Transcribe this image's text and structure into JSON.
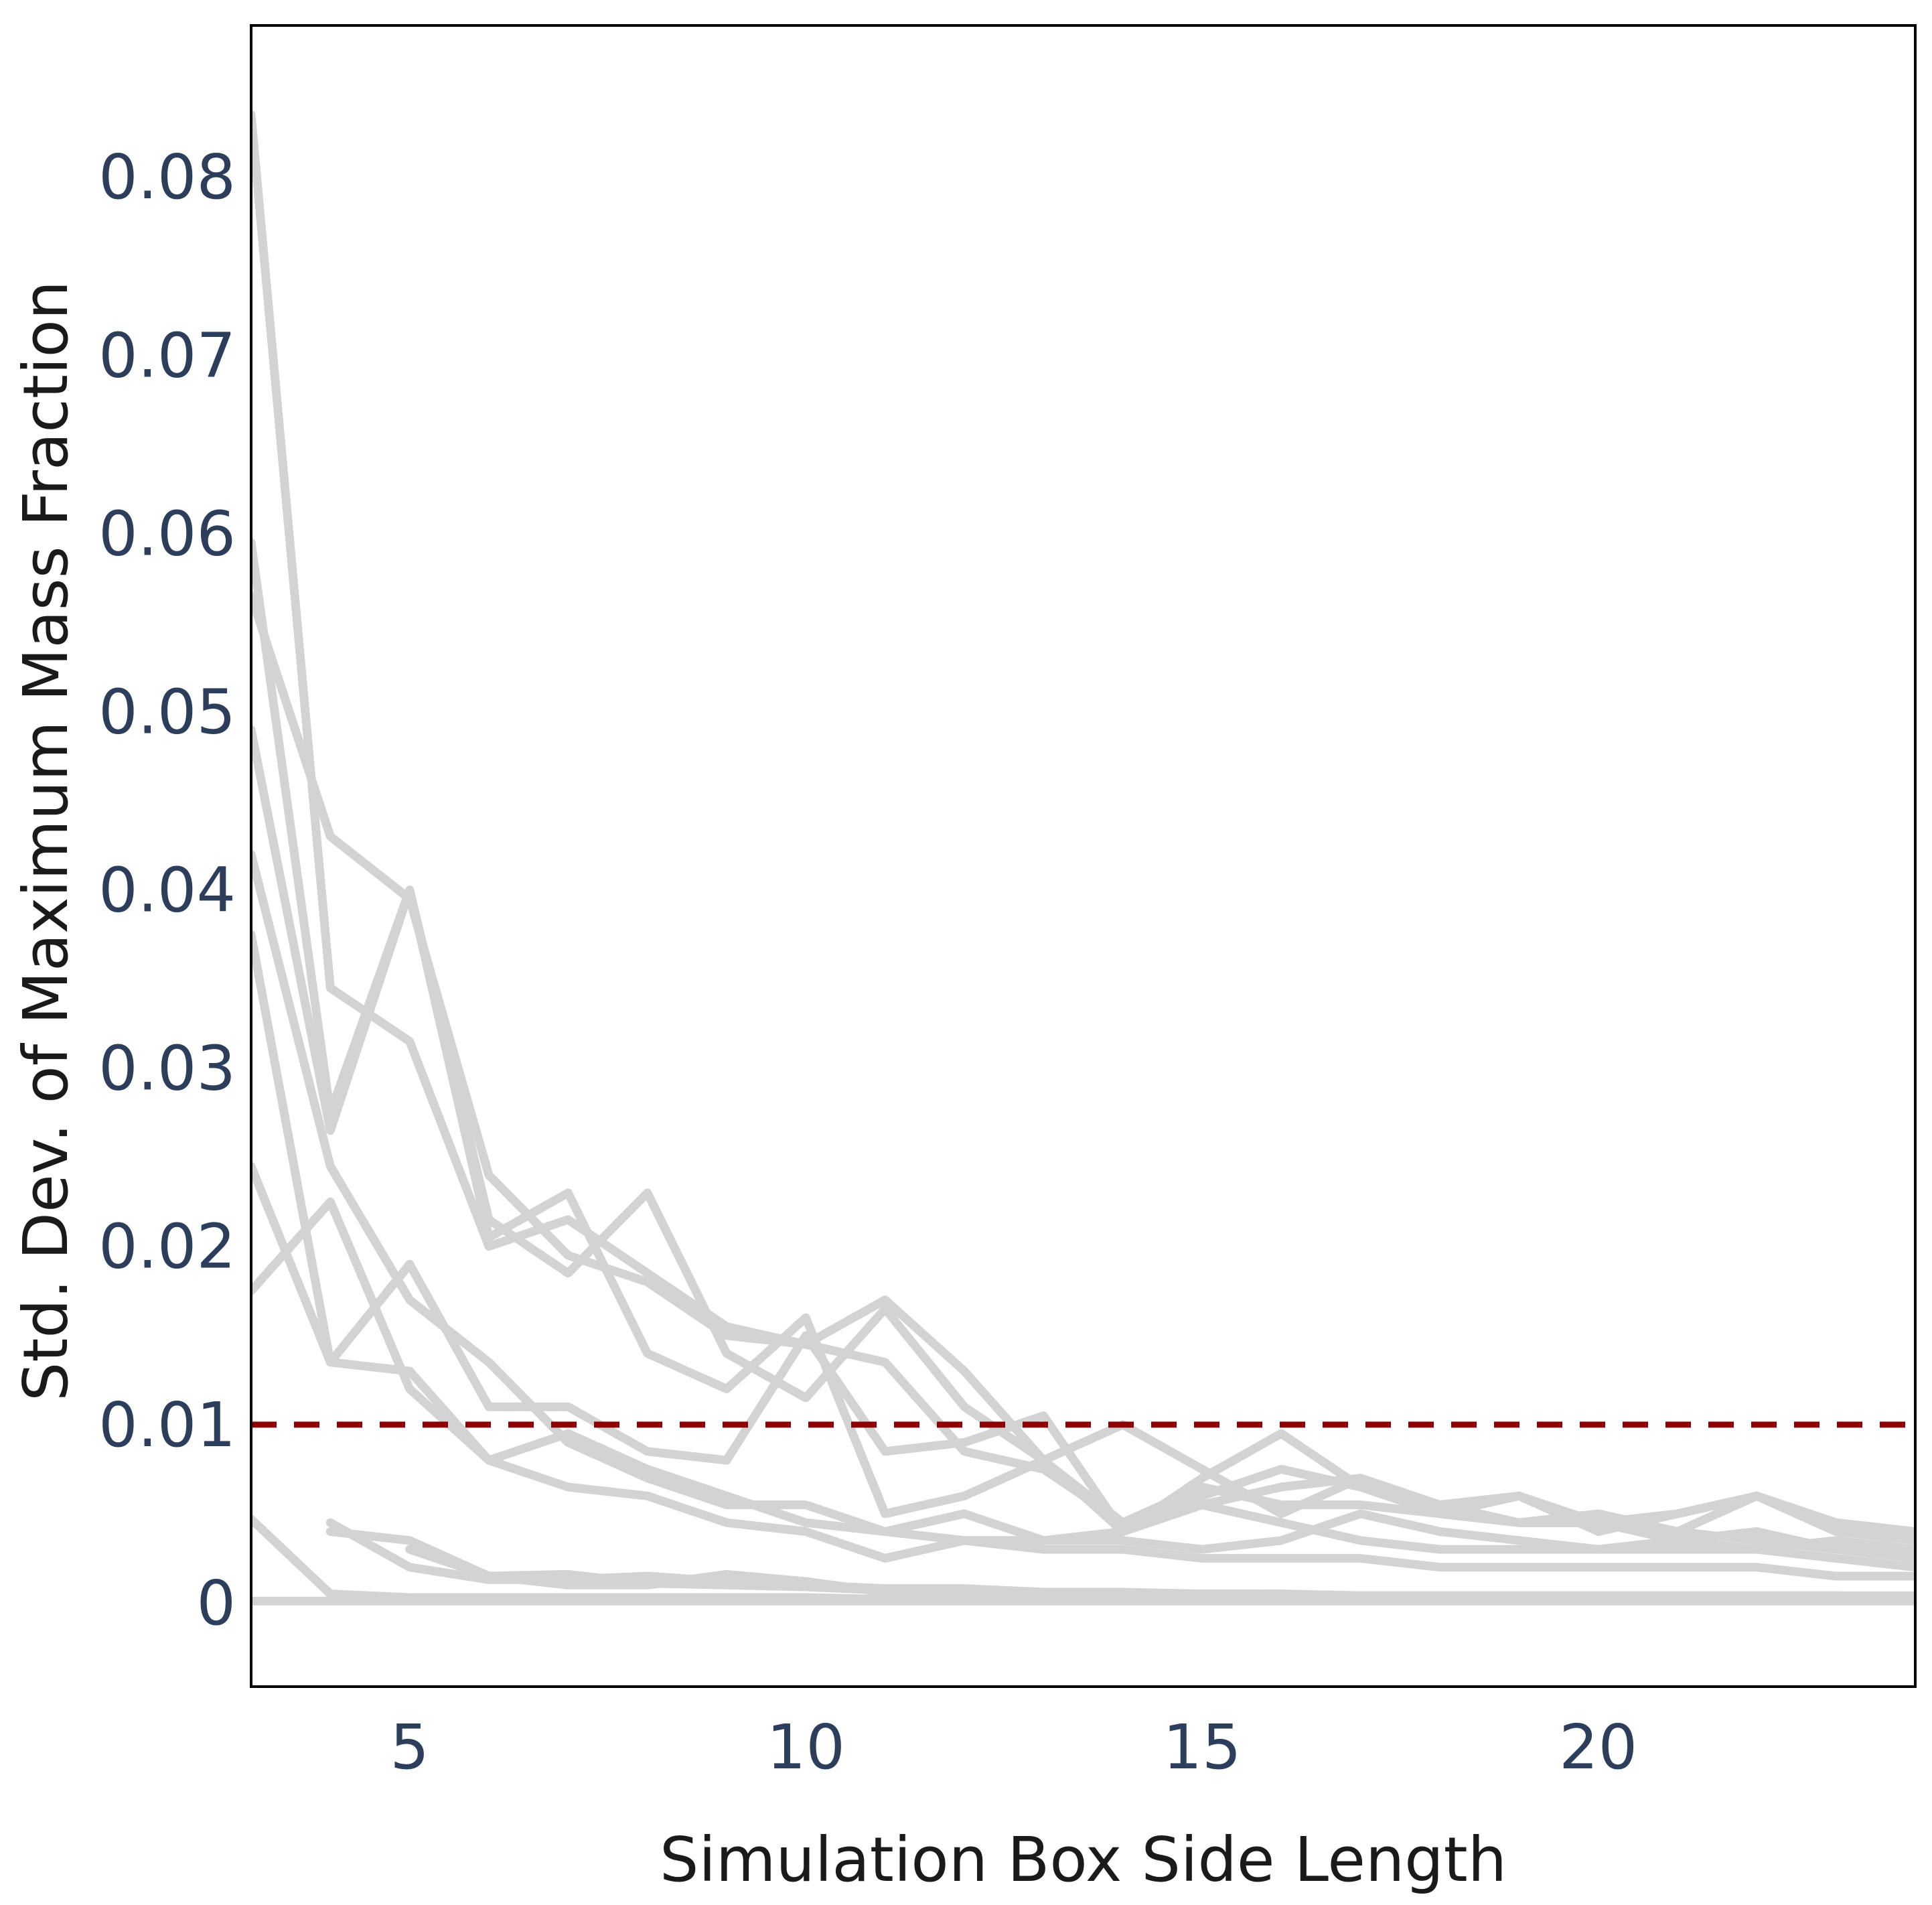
{
  "chart_data": {
    "type": "line",
    "title": "",
    "xlabel": "Simulation Box Side Length",
    "ylabel": "Std. Dev. of Maximum Mass Fraction",
    "xlim": [
      3,
      24
    ],
    "ylim": [
      -0.0047,
      0.0885
    ],
    "x_ticks": [
      5,
      10,
      15,
      20
    ],
    "y_ticks": [
      0,
      0.01,
      0.02,
      0.03,
      0.04,
      0.05,
      0.06,
      0.07,
      0.08
    ],
    "y_tick_labels": [
      "0",
      "0.01",
      "0.02",
      "0.03",
      "0.04",
      "0.05",
      "0.06",
      "0.07",
      "0.08"
    ],
    "grid": false,
    "legend": "none",
    "series_color": "#d3d3d3",
    "reference_line": {
      "y": 0.01,
      "style": "dashed",
      "color": "#8b0000"
    },
    "series": [
      {
        "x": [
          3,
          4,
          5,
          6,
          7,
          8,
          9,
          10,
          11,
          12,
          13,
          14,
          15,
          16,
          17,
          18,
          19,
          20,
          21,
          22,
          23,
          24
        ],
        "y": [
          0.0835,
          0.0345,
          0.0315,
          0.02,
          0.0215,
          0.0185,
          0.0155,
          0.0145,
          0.0135,
          0.0085,
          0.0075,
          0.0045,
          0.0065,
          0.0055,
          0.0055,
          0.005,
          0.0045,
          0.0045,
          0.004,
          0.0035,
          0.003,
          0.003
        ]
      },
      {
        "x": [
          3,
          4,
          5,
          6,
          7,
          8,
          9,
          10,
          11,
          12,
          13,
          14,
          15,
          16,
          17,
          18,
          19,
          20,
          21,
          22,
          23,
          24
        ],
        "y": [
          0.0595,
          0.0275,
          0.04,
          0.0215,
          0.0185,
          0.023,
          0.014,
          0.0115,
          0.0165,
          0.011,
          0.008,
          0.004,
          0.0055,
          0.0065,
          0.007,
          0.005,
          0.0045,
          0.005,
          0.004,
          0.006,
          0.004,
          0.0035
        ]
      },
      {
        "x": [
          3,
          4,
          5,
          6,
          7,
          8,
          9,
          10,
          11,
          12,
          13,
          14,
          15,
          16,
          17,
          18,
          19,
          20,
          21,
          22,
          23,
          24
        ],
        "y": [
          0.0565,
          0.043,
          0.0395,
          0.024,
          0.0195,
          0.018,
          0.015,
          0.0145,
          0.017,
          0.013,
          0.008,
          0.0045,
          0.006,
          0.0075,
          0.0065,
          0.0055,
          0.006,
          0.0045,
          0.005,
          0.006,
          0.0045,
          0.004
        ]
      },
      {
        "x": [
          3,
          4,
          5,
          6,
          7,
          8,
          9,
          10,
          11,
          12,
          13,
          14,
          15,
          16,
          17,
          18,
          19,
          20,
          21,
          22,
          23,
          24
        ],
        "y": [
          0.049,
          0.0265,
          0.04,
          0.0205,
          0.023,
          0.014,
          0.012,
          0.016,
          0.005,
          0.006,
          0.008,
          0.01,
          0.0075,
          0.005,
          0.007,
          0.0055,
          0.0045,
          0.0045,
          0.0035,
          0.003,
          0.0035,
          0.003
        ]
      },
      {
        "x": [
          3,
          4,
          5,
          6,
          7,
          8,
          9,
          10,
          11,
          12,
          13,
          14,
          15,
          16,
          17,
          18,
          19,
          20,
          21,
          22,
          23,
          24
        ],
        "y": [
          0.042,
          0.0245,
          0.017,
          0.0135,
          0.009,
          0.007,
          0.0055,
          0.0055,
          0.004,
          0.005,
          0.0035,
          0.0035,
          0.003,
          0.0035,
          0.005,
          0.004,
          0.0035,
          0.003,
          0.0035,
          0.004,
          0.003,
          0.0025
        ]
      },
      {
        "x": [
          3,
          4,
          5,
          6,
          7,
          8,
          9,
          10,
          11,
          12,
          13,
          14,
          15,
          16,
          17,
          18,
          19,
          20,
          21,
          22,
          23,
          24
        ],
        "y": [
          0.0375,
          0.0135,
          0.013,
          0.008,
          0.0095,
          0.0075,
          0.006,
          0.0045,
          0.004,
          0.0035,
          0.0035,
          0.004,
          0.0055,
          0.0045,
          0.0035,
          0.003,
          0.003,
          0.003,
          0.003,
          0.003,
          0.0025,
          0.002
        ]
      },
      {
        "x": [
          3,
          4,
          5,
          6,
          7,
          8,
          9,
          10,
          11,
          12,
          13,
          14,
          15,
          16,
          17,
          18,
          19,
          20,
          21,
          22,
          23,
          24
        ],
        "y": [
          0.0245,
          0.0135,
          0.019,
          0.011,
          0.011,
          0.0085,
          0.008,
          0.015,
          0.0085,
          0.009,
          0.0105,
          0.004,
          0.007,
          0.0095,
          0.0065,
          0.005,
          0.006,
          0.004,
          0.005,
          0.006,
          0.004,
          0.004
        ]
      },
      {
        "x": [
          3,
          4,
          5,
          6,
          7,
          8,
          9,
          10,
          11,
          12,
          13,
          14,
          15,
          16,
          17,
          18,
          19,
          20,
          21,
          22,
          23,
          24
        ],
        "y": [
          0.0175,
          0.0225,
          0.012,
          0.008,
          0.0065,
          0.006,
          0.0045,
          0.004,
          0.0025,
          0.0035,
          0.003,
          0.003,
          0.0025,
          0.0025,
          0.0025,
          0.002,
          0.002,
          0.002,
          0.002,
          0.002,
          0.0015,
          0.0015
        ]
      },
      {
        "x": [
          4,
          5,
          6,
          7,
          8,
          9,
          10,
          11,
          12,
          13,
          14,
          15,
          16,
          17,
          18,
          19,
          20,
          21,
          22,
          23,
          24
        ],
        "y": [
          0.0045,
          0.002,
          0.0013,
          0.0013,
          0.0015,
          0.0012,
          0.001,
          0.0008,
          0.0008,
          0.0006,
          0.0006,
          0.0005,
          0.0005,
          0.0004,
          0.0004,
          0.0004,
          0.0004,
          0.0004,
          0.0004,
          0.0004,
          0.0003
        ]
      },
      {
        "x": [
          4,
          5,
          6,
          7,
          8,
          9,
          10,
          11,
          12,
          13,
          14,
          15,
          16,
          17,
          18,
          19,
          20,
          21,
          22,
          23,
          24
        ],
        "y": [
          0.004,
          0.0035,
          0.0015,
          0.001,
          0.001,
          0.0016,
          0.0012,
          0.0006,
          0.0006,
          0.0006,
          0.0005,
          0.0005,
          0.0005,
          0.0004,
          0.0004,
          0.0004,
          0.0004,
          0.0003,
          0.0003,
          0.0003,
          0.0003
        ]
      },
      {
        "x": [
          3,
          4,
          5,
          6,
          7,
          8,
          9,
          10,
          11,
          12,
          13,
          14,
          15,
          16,
          17,
          18,
          19,
          20,
          21,
          22,
          23,
          24
        ],
        "y": [
          0.0047,
          0.0005,
          0.0003,
          0.0003,
          0.0003,
          0.0003,
          0.0003,
          0.0003,
          0.0002,
          0.0002,
          0.0002,
          0.0002,
          0.0002,
          0.0002,
          0.0002,
          0.0002,
          0.0002,
          0.0002,
          0.0002,
          0.0002,
          0.0002,
          0.0002
        ]
      },
      {
        "x": [
          3,
          4,
          5,
          6,
          7,
          8,
          9,
          10,
          11,
          12,
          13,
          14,
          15,
          16,
          17,
          18,
          19,
          20,
          21,
          22,
          23,
          24
        ],
        "y": [
          0.0001,
          0.0001,
          0.0001,
          0.0001,
          0.0001,
          0.0001,
          0.0001,
          0.0001,
          0.0001,
          0.0001,
          0.0001,
          0.0001,
          0.0001,
          0.0001,
          0.0001,
          0.0001,
          0.0001,
          0.0001,
          0.0001,
          0.0001,
          0.0001,
          0.0001
        ]
      },
      {
        "x": [
          5,
          6,
          7,
          8,
          9,
          10,
          11,
          12,
          13,
          14,
          15,
          16,
          17,
          18,
          19,
          20,
          21,
          22,
          23,
          24
        ],
        "y": [
          0.003,
          0.0015,
          0.0016,
          0.0011,
          0.001,
          0.0009,
          0.0007,
          0.0006,
          0.0005,
          0.0005,
          0.0005,
          0.0004,
          0.0004,
          0.0004,
          0.0004,
          0.0004,
          0.0004,
          0.0004,
          0.0004,
          0.0004
        ]
      }
    ]
  }
}
